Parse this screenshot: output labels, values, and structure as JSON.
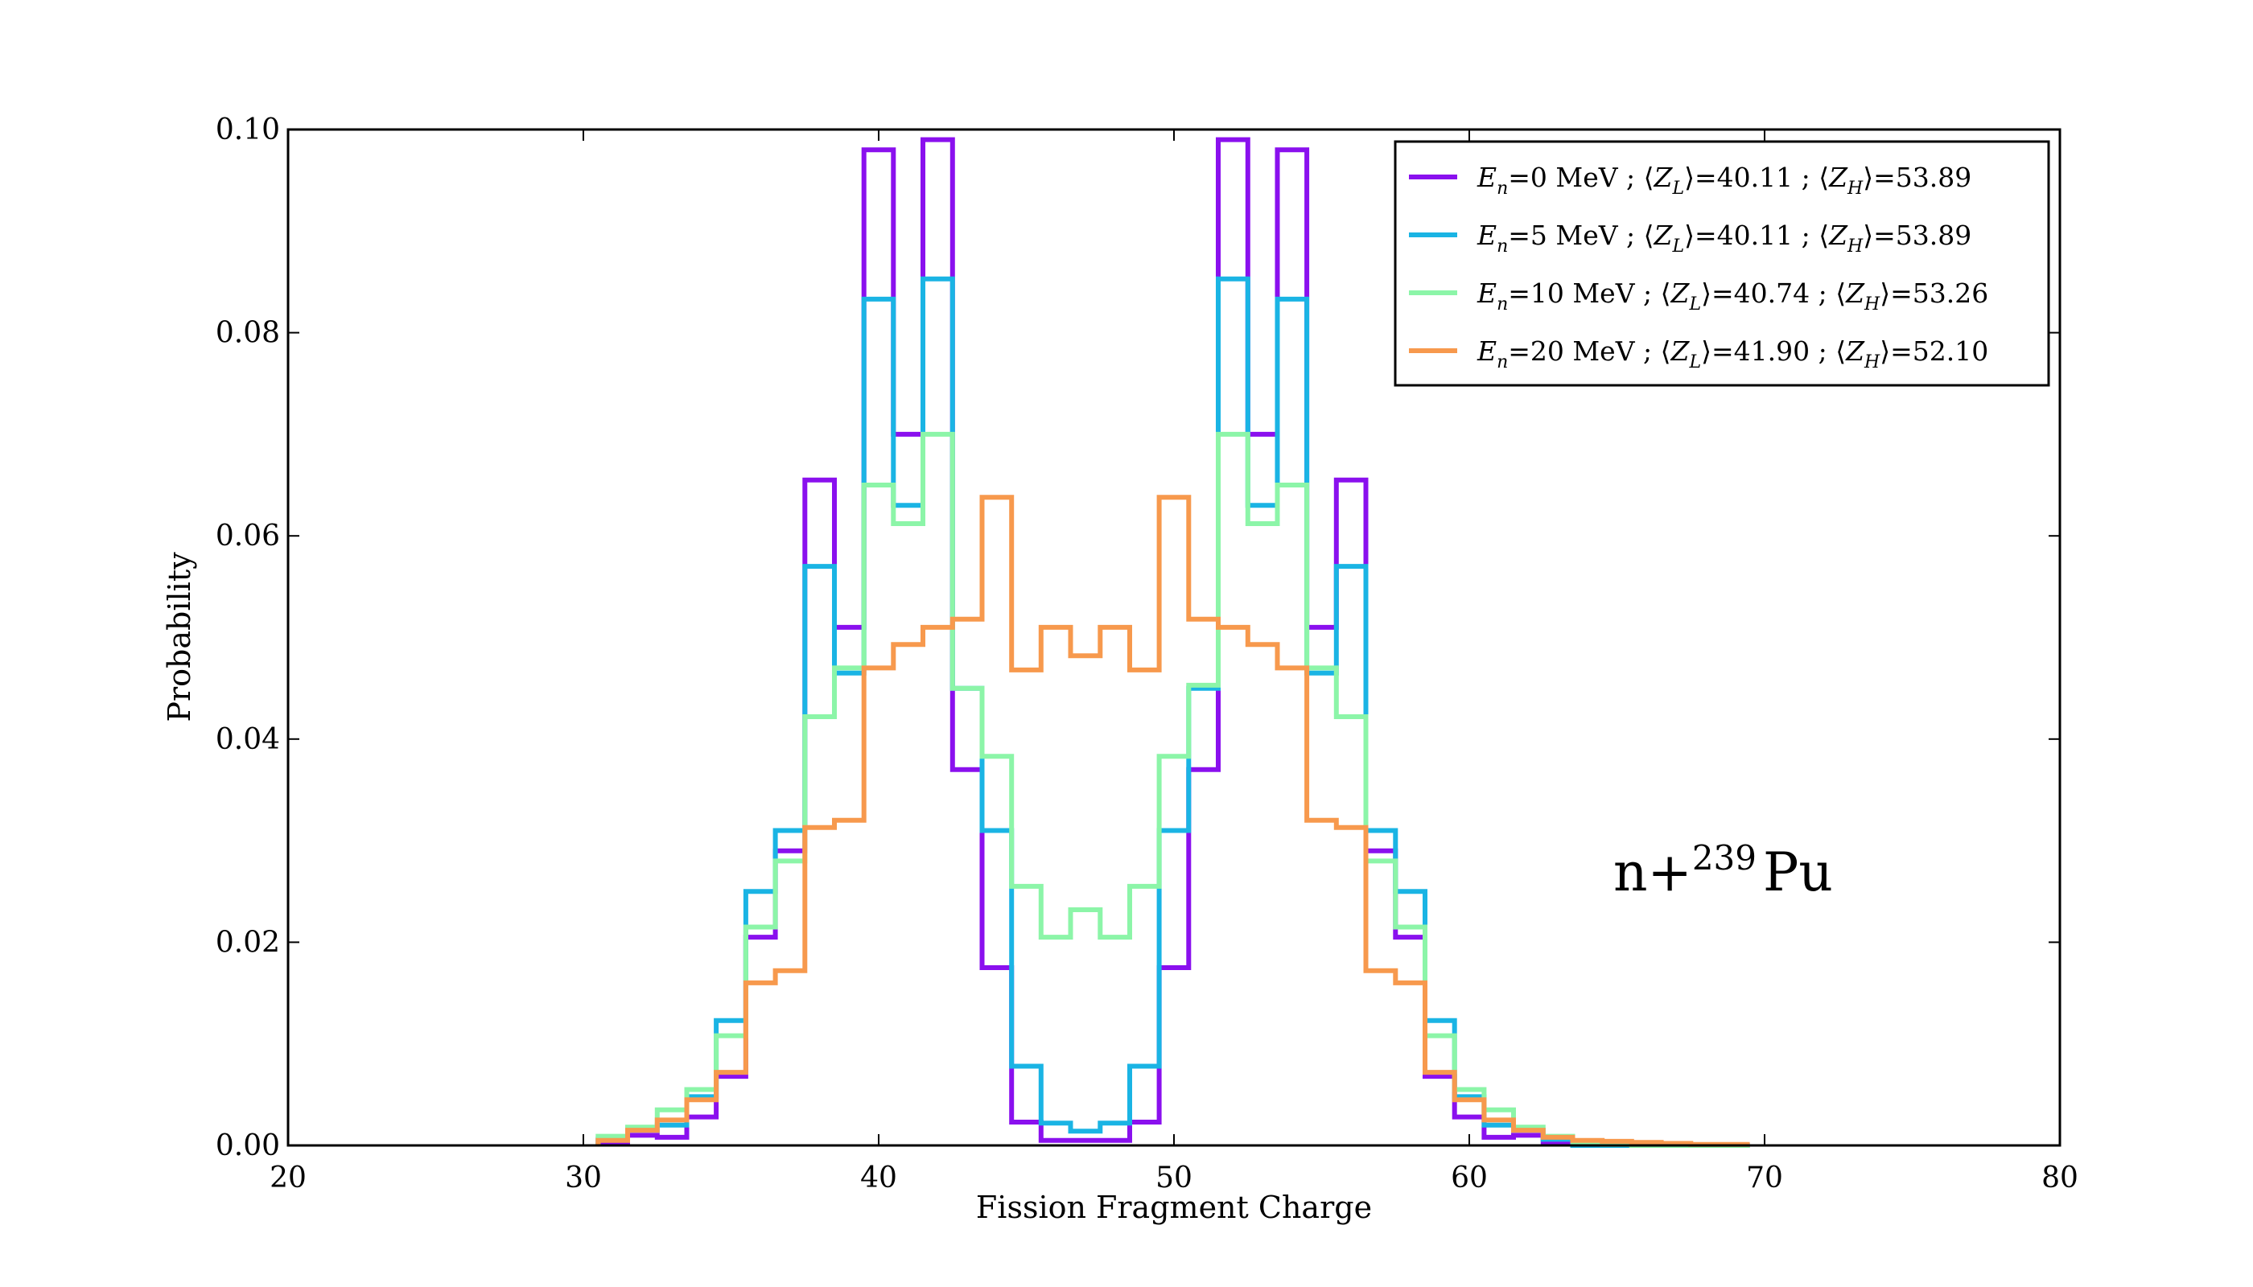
{
  "chart_data": {
    "type": "line",
    "step": true,
    "xlabel": "Fission Fragment Charge",
    "ylabel": "Probability",
    "xlim": [
      20,
      80
    ],
    "ylim": [
      0,
      0.1
    ],
    "xticks": [
      "20",
      "30",
      "40",
      "50",
      "60",
      "70",
      "80"
    ],
    "yticks": [
      "0.00",
      "0.02",
      "0.04",
      "0.06",
      "0.08",
      "0.10"
    ],
    "grid": false,
    "legend_position": "top-right",
    "annotation": {
      "base": "n+",
      "sup": "239",
      "rest": "Pu"
    },
    "x": [
      31,
      32,
      33,
      34,
      35,
      36,
      37,
      38,
      39,
      40,
      41,
      42,
      43,
      44,
      45,
      46,
      47,
      48,
      49,
      50,
      51,
      52,
      53,
      54,
      55,
      56,
      57,
      58,
      59,
      60,
      61,
      62,
      63,
      64,
      65,
      66,
      67,
      68,
      69
    ],
    "series": [
      {
        "name": "E_n=0 MeV ; ⟨Z_L⟩=40.11 ; ⟨Z_H⟩=53.89",
        "label_parts": {
          "energy": "=0 MeV ; ",
          "zl": "=40.11 ; ",
          "zh": "=53.89"
        },
        "color": "#8a10ee",
        "values": [
          0.0003,
          0.001,
          0.0008,
          0.0028,
          0.0068,
          0.0205,
          0.029,
          0.0655,
          0.051,
          0.098,
          0.07,
          0.099,
          0.037,
          0.0175,
          0.0023,
          0.0005,
          0.0005,
          0.0005,
          0.0023,
          0.0175,
          0.037,
          0.099,
          0.07,
          0.098,
          0.051,
          0.0655,
          0.029,
          0.0205,
          0.0068,
          0.0028,
          0.0008,
          0.001,
          0.0003,
          0,
          0,
          0,
          0,
          0,
          0
        ]
      },
      {
        "name": "E_n=5 MeV ; ⟨Z_L⟩=40.11 ; ⟨Z_H⟩=53.89",
        "label_parts": {
          "energy": "=5 MeV ; ",
          "zl": "=40.11 ; ",
          "zh": "=53.89"
        },
        "color": "#1ab4e4",
        "values": [
          0.0006,
          0.0015,
          0.002,
          0.0048,
          0.0123,
          0.025,
          0.031,
          0.057,
          0.0465,
          0.0833,
          0.063,
          0.0853,
          0.045,
          0.031,
          0.0078,
          0.0022,
          0.0014,
          0.0022,
          0.0078,
          0.031,
          0.045,
          0.0853,
          0.063,
          0.0833,
          0.0465,
          0.057,
          0.031,
          0.025,
          0.0123,
          0.0048,
          0.002,
          0.0015,
          0.0006,
          0,
          0,
          0,
          0,
          0,
          0
        ]
      },
      {
        "name": "E_n=10 MeV ; ⟨Z_L⟩=40.74 ; ⟨Z_H⟩=53.26",
        "label_parts": {
          "energy": "=10 MeV ; ",
          "zl": "=40.74 ; ",
          "zh": "=53.26"
        },
        "color": "#8cf5a8",
        "values": [
          0.0009,
          0.0018,
          0.0035,
          0.0055,
          0.0108,
          0.0215,
          0.028,
          0.0422,
          0.047,
          0.065,
          0.0612,
          0.07,
          0.045,
          0.0383,
          0.0255,
          0.0205,
          0.0232,
          0.0205,
          0.0255,
          0.0383,
          0.0453,
          0.07,
          0.0612,
          0.065,
          0.047,
          0.0422,
          0.028,
          0.0215,
          0.0108,
          0.0055,
          0.0035,
          0.0018,
          0.0009,
          0.0003,
          0.0001,
          0,
          0,
          0,
          0
        ]
      },
      {
        "name": "E_n=20 MeV ; ⟨Z_L⟩=41.90 ; ⟨Z_H⟩=52.10",
        "label_parts": {
          "energy": "=20 MeV ; ",
          "zl": "=41.90 ; ",
          "zh": "=52.10"
        },
        "color": "#f7994d",
        "values": [
          0.0005,
          0.0015,
          0.0025,
          0.0045,
          0.0072,
          0.016,
          0.0172,
          0.0313,
          0.032,
          0.047,
          0.0493,
          0.051,
          0.0518,
          0.0638,
          0.0468,
          0.051,
          0.0482,
          0.051,
          0.0468,
          0.0638,
          0.0518,
          0.051,
          0.0493,
          0.047,
          0.032,
          0.0313,
          0.0172,
          0.016,
          0.0072,
          0.0045,
          0.0025,
          0.0015,
          0.0008,
          0.0005,
          0.0004,
          0.0003,
          0.0002,
          0.0001,
          0.0001
        ]
      }
    ]
  }
}
